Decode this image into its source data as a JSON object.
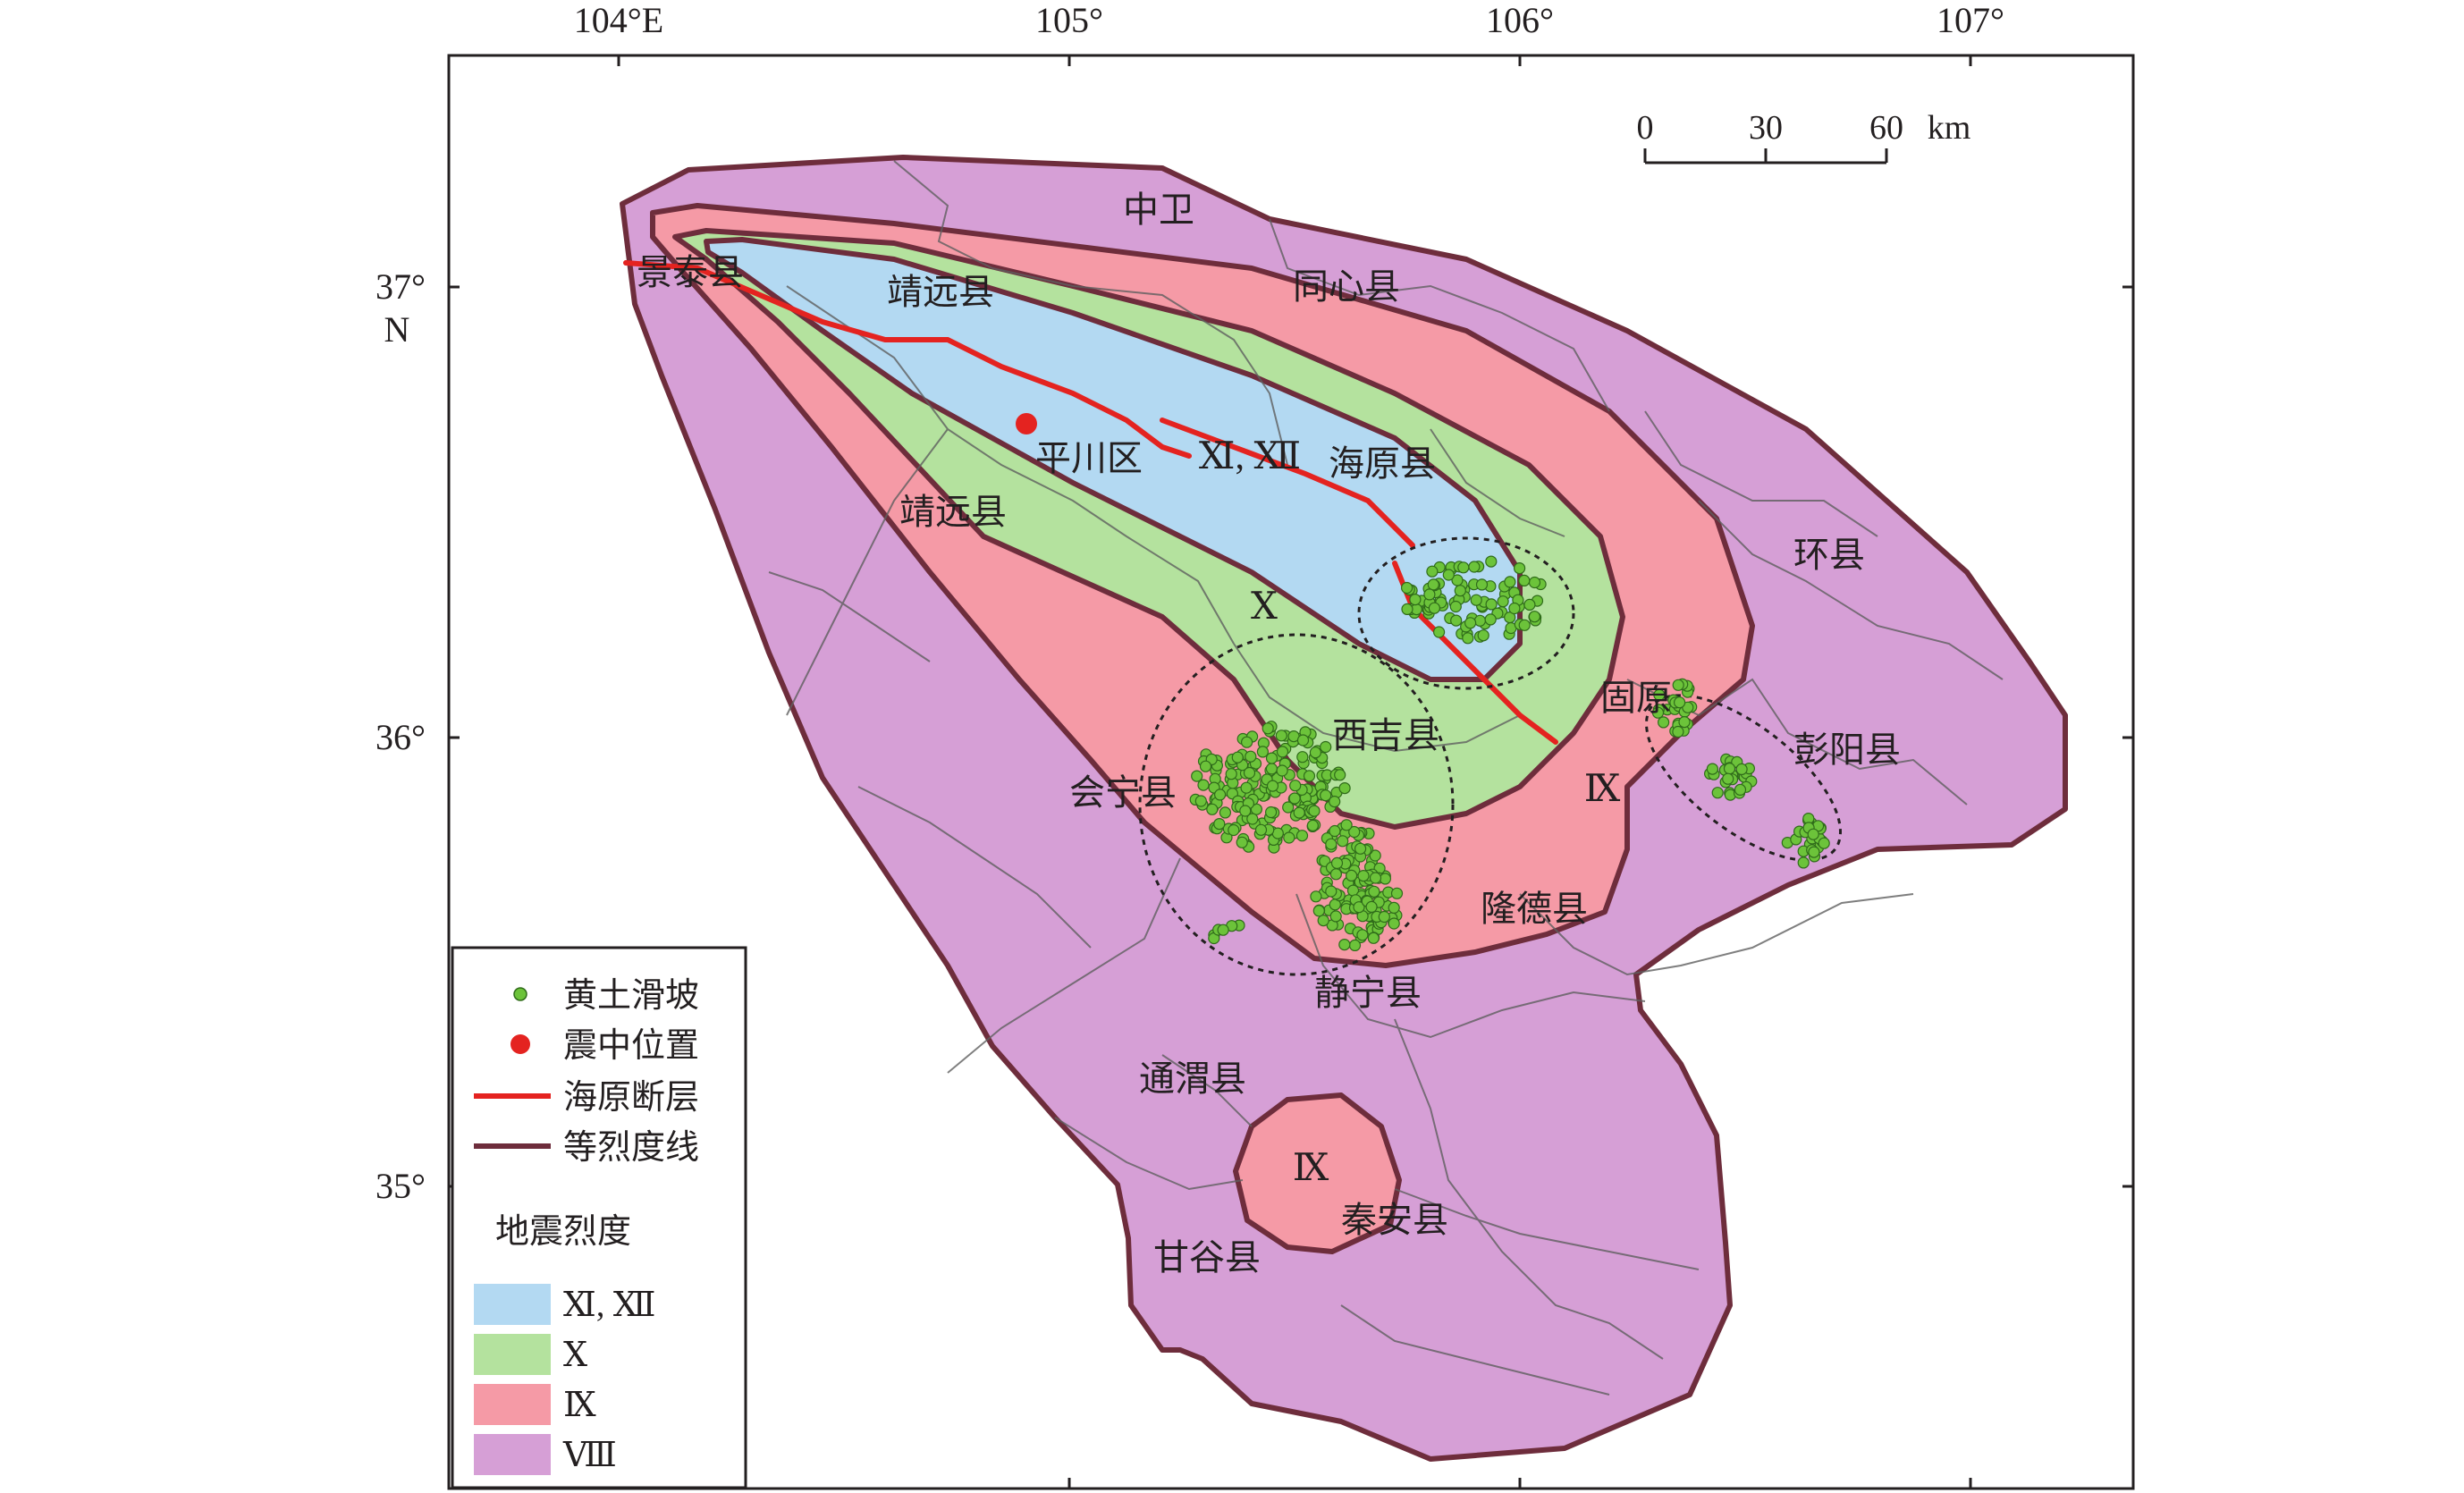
{
  "axes": {
    "longitude_labels": [
      "104°E",
      "105°",
      "106°",
      "107°"
    ],
    "latitude_labels": [
      "37°",
      "36°",
      "35°"
    ],
    "north_label": "N"
  },
  "scale_bar": {
    "labels": [
      "0",
      "30",
      "60"
    ],
    "unit": "km"
  },
  "places": {
    "zhongwei": "中卫",
    "jingtai": "景泰县",
    "jingyuan_north": "靖远县",
    "tongxin": "同心县",
    "pingchuan": "平川区",
    "haiyuan": "海原县",
    "jingyuan_south": "靖远县",
    "huanxian": "环县",
    "guyuan": "固原",
    "pengyang": "彭阳县",
    "xiji": "西吉县",
    "huining": "会宁县",
    "longde": "隆德县",
    "jingning": "静宁县",
    "tongwei": "通渭县",
    "qinan": "秦安县",
    "gangu": "甘谷县"
  },
  "intensity_labels": {
    "zone_xi_xii": "Ⅺ, Ⅻ",
    "zone_x": "Ⅹ",
    "zone_ix_east": "Ⅸ",
    "zone_ix_south": "Ⅸ"
  },
  "colors": {
    "zone_xi_xii": "#b3d9f2",
    "zone_x": "#b4e29e",
    "zone_ix": "#f59aa6",
    "zone_viii": "#d69fd6",
    "isoseismal_line": "#6e2d3c",
    "fault_line": "#e42320",
    "epicenter": "#e42320",
    "landslide": "#6cc33a",
    "county_border": "#5f5f5f"
  },
  "legend": {
    "landslide": "黄土滑坡",
    "epicenter": "震中位置",
    "fault": "海原断层",
    "isoseismal": "等烈度线",
    "intensity_title": "地震烈度",
    "intensity_items": [
      {
        "label": "Ⅺ, Ⅻ",
        "color": "#b3d9f2"
      },
      {
        "label": "Ⅹ",
        "color": "#b4e29e"
      },
      {
        "label": "Ⅸ",
        "color": "#f59aa6"
      },
      {
        "label": "Ⅷ",
        "color": "#d69fd6"
      }
    ]
  }
}
